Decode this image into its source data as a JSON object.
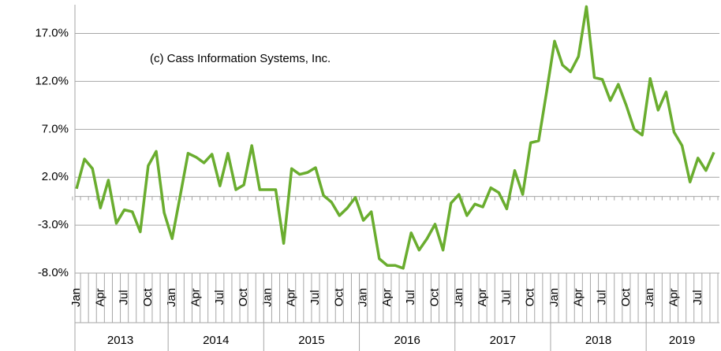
{
  "chart_data": {
    "type": "line",
    "annotation": "(c) Cass Information Systems, Inc.",
    "categories": [
      "Jan",
      null,
      null,
      "Apr",
      null,
      null,
      "Jul",
      null,
      null,
      "Oct",
      null,
      null,
      "Jan",
      null,
      null,
      "Apr",
      null,
      null,
      "Jul",
      null,
      null,
      "Oct",
      null,
      null,
      "Jan",
      null,
      null,
      "Apr",
      null,
      null,
      "Jul",
      null,
      null,
      "Oct",
      null,
      null,
      "Jan",
      null,
      null,
      "Apr",
      null,
      null,
      "Jul",
      null,
      null,
      "Oct",
      null,
      null,
      "Jan",
      null,
      null,
      "Apr",
      null,
      null,
      "Jul",
      null,
      null,
      "Oct",
      null,
      null,
      "Jan",
      null,
      null,
      "Apr",
      null,
      null,
      "Jul",
      null,
      null,
      "Oct",
      null,
      null,
      "Jan",
      null,
      null,
      "Apr",
      null,
      null,
      "Jul",
      null,
      null
    ],
    "years": [
      "2013",
      "2014",
      "2015",
      "2016",
      "2017",
      "2018",
      "2019"
    ],
    "series": [
      {
        "color": "#6aad2f",
        "values": [
          0.8,
          3.9,
          2.9,
          -1.2,
          1.7,
          -2.8,
          -1.4,
          -1.6,
          -3.7,
          3.2,
          4.7,
          -1.7,
          -4.4,
          0,
          4.5,
          4.1,
          3.5,
          4.4,
          1.1,
          4.5,
          0.7,
          1.2,
          5.3,
          0.7,
          0.7,
          0.7,
          -4.9,
          2.9,
          2.3,
          2.5,
          3.0,
          0.1,
          -0.6,
          -2.0,
          -1.2,
          -0.1,
          -2.5,
          -1.6,
          -6.5,
          -7.2,
          -7.2,
          -7.5,
          -3.8,
          -5.6,
          -4.4,
          -2.9,
          -5.6,
          -0.7,
          0.2,
          -2.0,
          -0.8,
          -1.1,
          0.9,
          0.4,
          -1.3,
          2.7,
          0.2,
          5.6,
          5.8,
          10.9,
          16.2,
          13.7,
          13.0,
          14.6,
          19.8,
          12.4,
          12.2,
          10.0,
          11.7,
          9.5,
          7.0,
          6.4,
          12.3,
          9.0,
          10.9,
          6.7,
          5.3,
          1.5,
          4.0,
          2.7,
          4.6
        ]
      }
    ],
    "ylim": [
      -8,
      20
    ],
    "yticks": [
      {
        "value": -8,
        "label": "-8.0%"
      },
      {
        "value": -3,
        "label": "-3.0%"
      },
      {
        "value": 2,
        "label": "2.0%"
      },
      {
        "value": 7,
        "label": "7.0%"
      },
      {
        "value": 12,
        "label": "12.0%"
      },
      {
        "value": 17,
        "label": "17.0%"
      }
    ],
    "grid": true
  }
}
